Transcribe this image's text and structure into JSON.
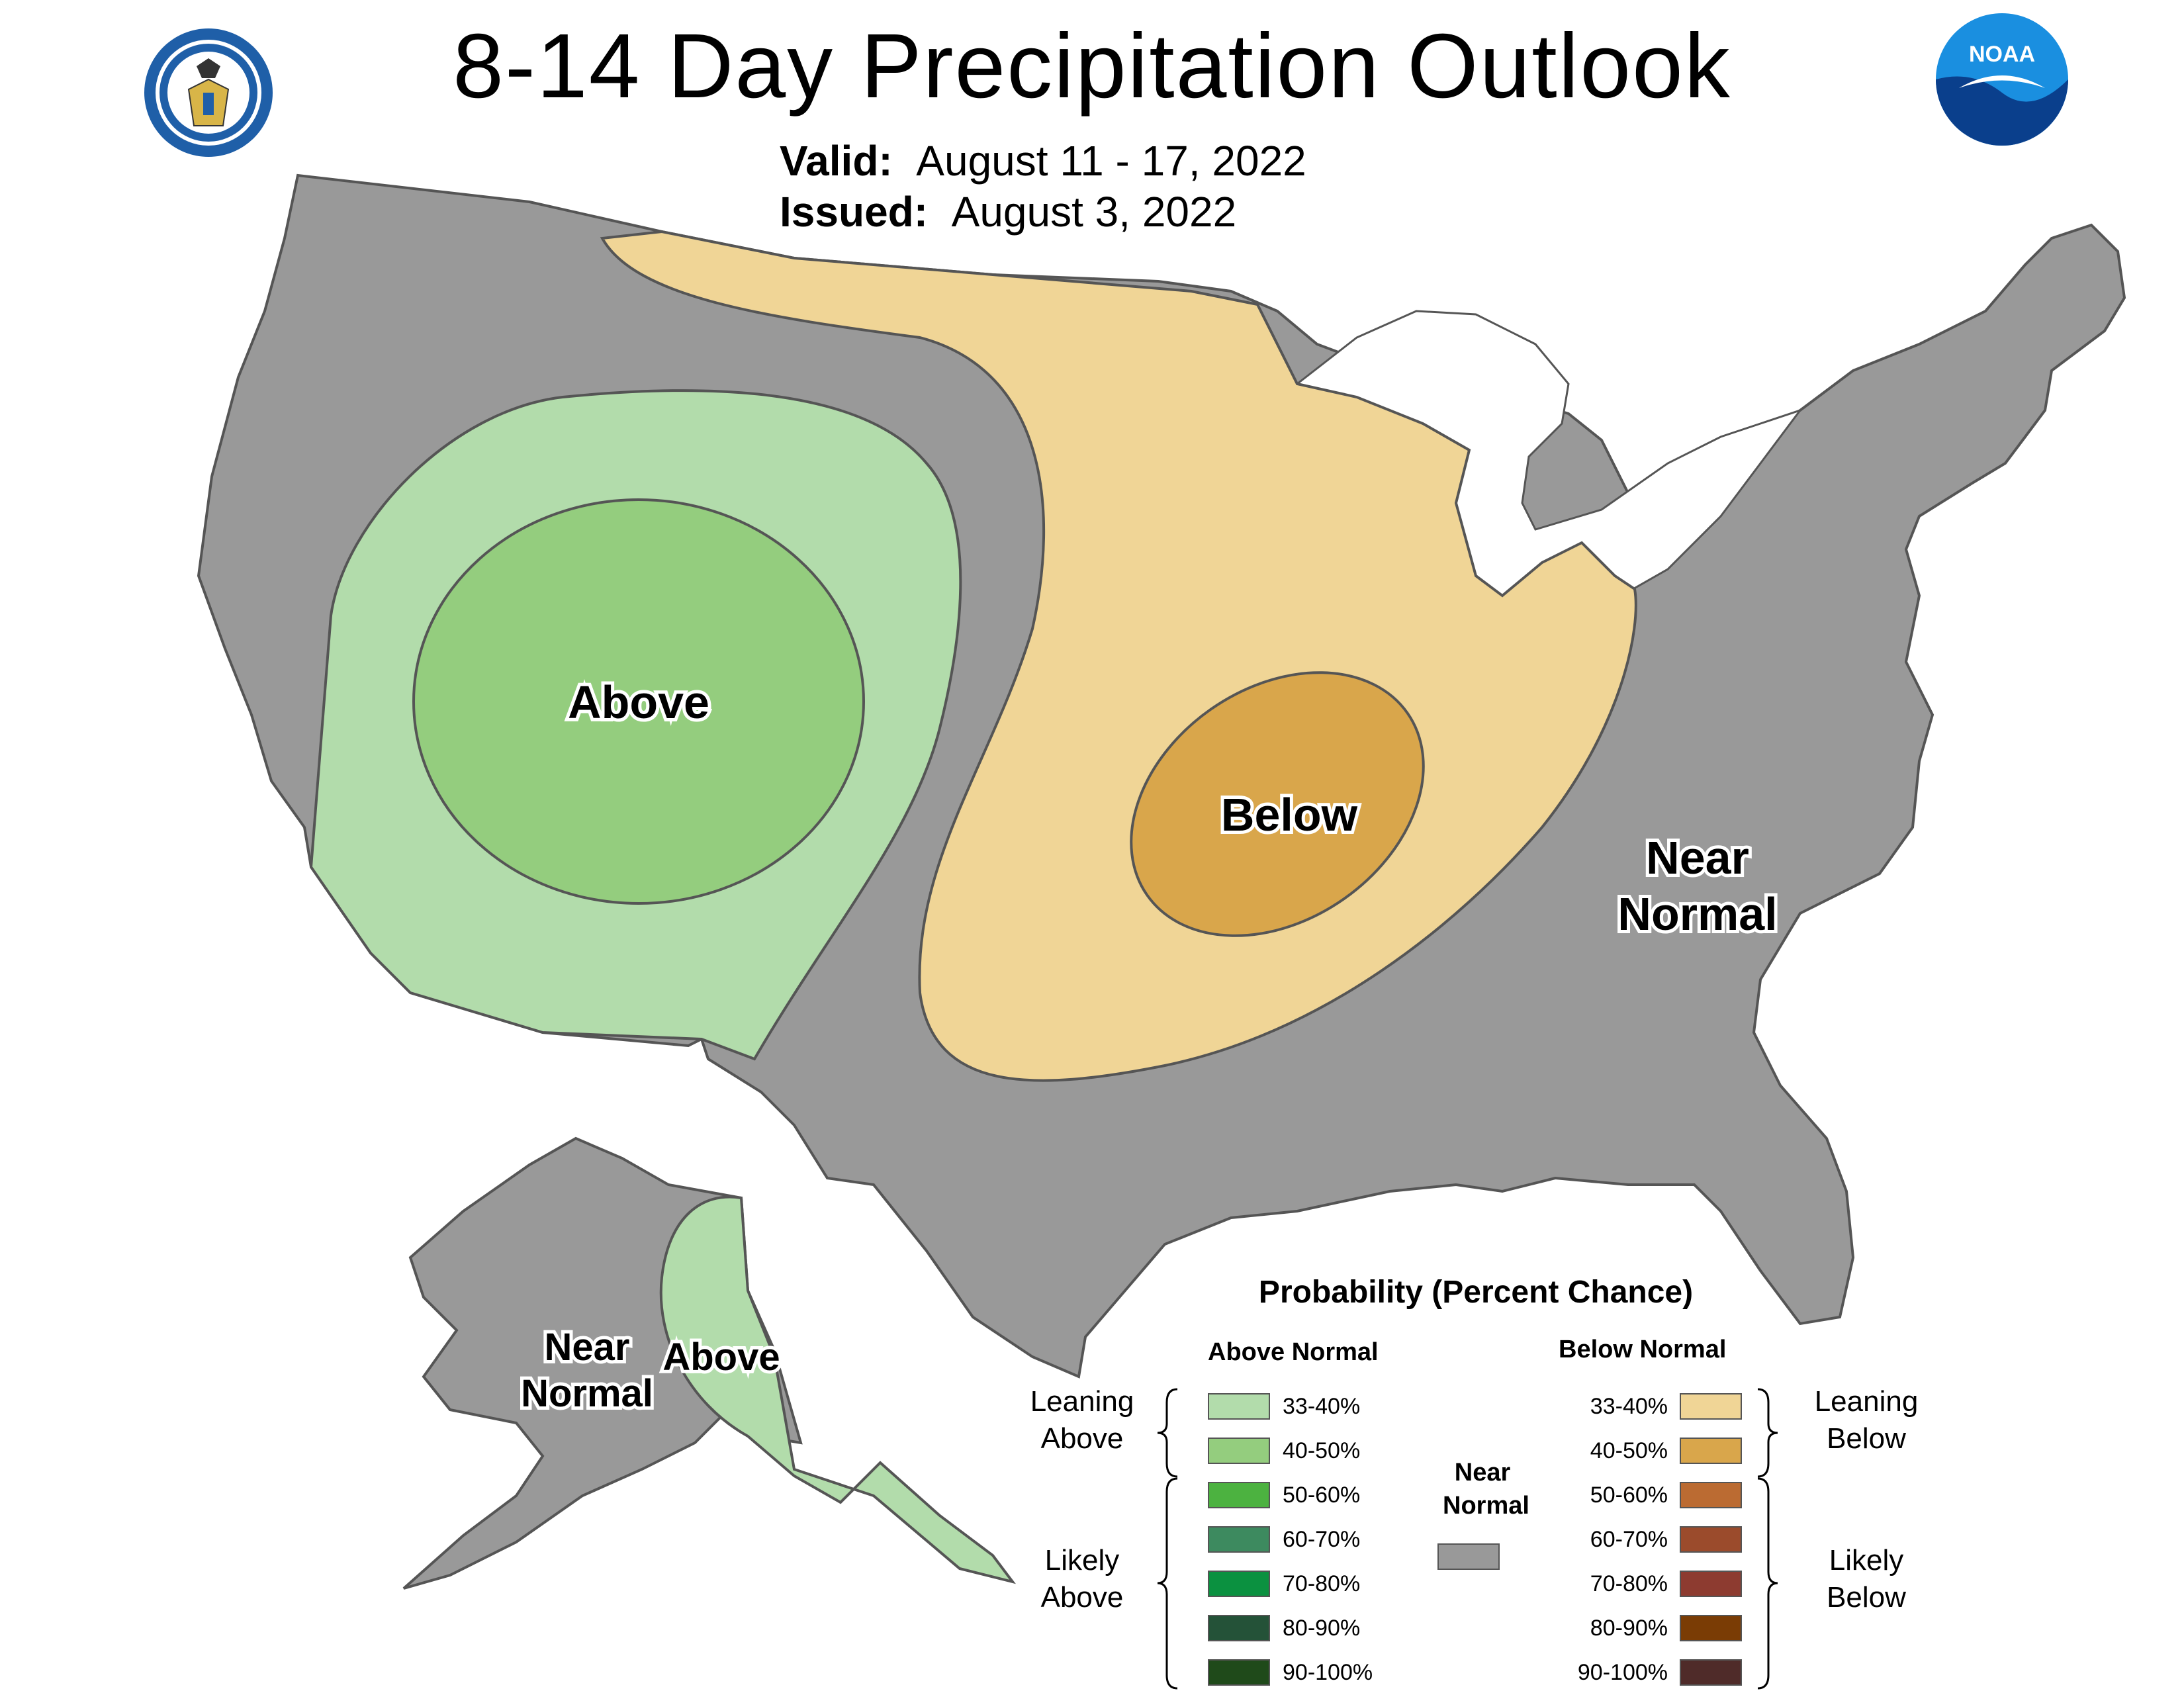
{
  "title": "8-14 Day Precipitation Outlook",
  "valid_label": "Valid:",
  "valid_value": "August 11 - 17, 2022",
  "issued_label": "Issued:",
  "issued_value": "August 3, 2022",
  "logos": {
    "left": "department-of-commerce-seal",
    "right": "noaa-logo",
    "right_text": "NOAA"
  },
  "map_labels": {
    "above": "Above",
    "below": "Below",
    "near_normal_1": "Near",
    "near_normal_2": "Normal",
    "ak_near_1": "Near",
    "ak_near_2": "Normal",
    "ak_above": "Above"
  },
  "legend": {
    "title": "Probability (Percent Chance)",
    "above_header": "Above Normal",
    "below_header": "Below Normal",
    "near_header_1": "Near",
    "near_header_2": "Normal",
    "near_color": "#999999",
    "leaning_above_1": "Leaning",
    "leaning_above_2": "Above",
    "likely_above_1": "Likely",
    "likely_above_2": "Above",
    "leaning_below_1": "Leaning",
    "leaning_below_2": "Below",
    "likely_below_1": "Likely",
    "likely_below_2": "Below",
    "above": [
      {
        "range": "33-40%",
        "color": "#b2dcab"
      },
      {
        "range": "40-50%",
        "color": "#94cd7e"
      },
      {
        "range": "50-60%",
        "color": "#4cb240"
      },
      {
        "range": "60-70%",
        "color": "#3d8a5f"
      },
      {
        "range": "70-80%",
        "color": "#0b9140"
      },
      {
        "range": "80-90%",
        "color": "#245238"
      },
      {
        "range": "90-100%",
        "color": "#1f4a1a"
      }
    ],
    "below": [
      {
        "range": "33-40%",
        "color": "#f0d596"
      },
      {
        "range": "40-50%",
        "color": "#d9a64b"
      },
      {
        "range": "50-60%",
        "color": "#bb6b32"
      },
      {
        "range": "60-70%",
        "color": "#9b4b2c"
      },
      {
        "range": "70-80%",
        "color": "#8d3b30"
      },
      {
        "range": "80-90%",
        "color": "#7a3c05"
      },
      {
        "range": "90-100%",
        "color": "#4f2b29"
      }
    ]
  },
  "colors": {
    "near_normal": "#999999",
    "leaning_above": "#b2dcab",
    "above_40_50": "#94cd7e",
    "leaning_below": "#f0d596",
    "below_40_50": "#d9a64b",
    "great_lakes": "#ffffff"
  }
}
